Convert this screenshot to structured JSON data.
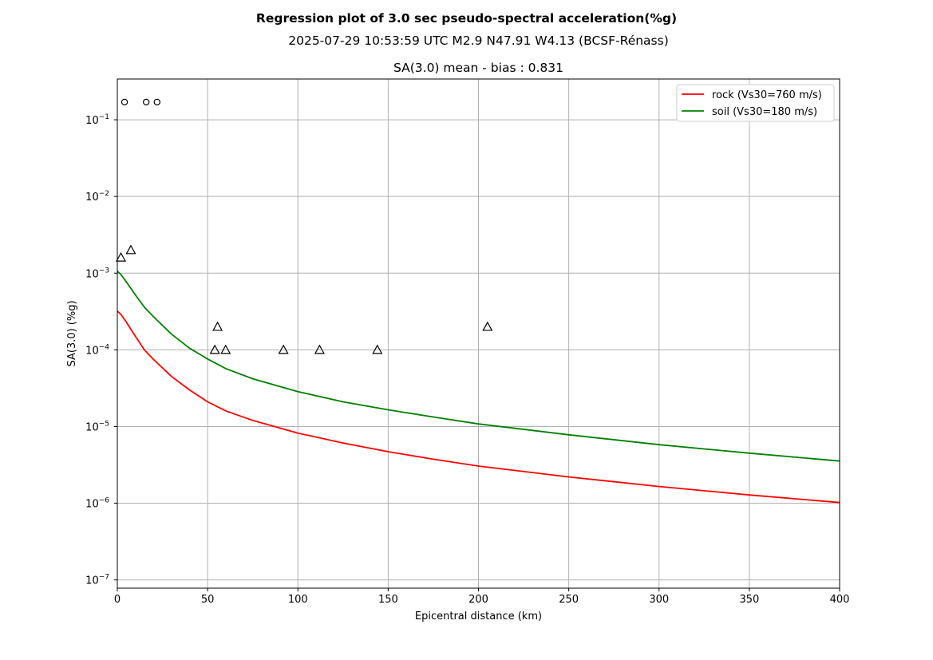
{
  "chart_data": {
    "type": "scatter",
    "title": "Regression plot of 3.0 sec pseudo-spectral acceleration(%g)",
    "subtitle": "2025-07-29 10:53:59 UTC M2.9 N47.91 W4.13 (BCSF-Rénass)",
    "panel_title": "SA(3.0) mean - bias : 0.831",
    "xlabel": "Epicentral distance (km)",
    "ylabel": "SA(3.0) (%g)",
    "xlim": [
      0,
      400
    ],
    "ylim": [
      7.8e-08,
      0.34
    ],
    "yscale": "log",
    "grid": true,
    "legend_position": "top-right",
    "x_ticks": [
      0,
      50,
      100,
      150,
      200,
      250,
      300,
      350,
      400
    ],
    "y_ticks": [
      {
        "exp": -7,
        "value": 1e-07
      },
      {
        "exp": -6,
        "value": 1e-06
      },
      {
        "exp": -5,
        "value": 1e-05
      },
      {
        "exp": -4,
        "value": 0.0001
      },
      {
        "exp": -3,
        "value": 0.001
      },
      {
        "exp": -2,
        "value": 0.01
      },
      {
        "exp": -1,
        "value": 0.1
      }
    ],
    "tick_base": "10",
    "series": [
      {
        "name": "rock (Vs30=760 m/s)",
        "color": "#ff0000",
        "kind": "line",
        "x": [
          0,
          2,
          5,
          10,
          15,
          20,
          30,
          40,
          50,
          60,
          75,
          100,
          125,
          150,
          175,
          200,
          250,
          300,
          350,
          400
        ],
        "values": [
          0.00032,
          0.00029,
          0.00023,
          0.00015,
          0.0001,
          7.5e-05,
          4.5e-05,
          3e-05,
          2.1e-05,
          1.6e-05,
          1.2e-05,
          8.2e-06,
          6.1e-06,
          4.7e-06,
          3.75e-06,
          3.05e-06,
          2.2e-06,
          1.65e-06,
          1.28e-06,
          1.02e-06
        ]
      },
      {
        "name": "soil (Vs30=180 m/s)",
        "color": "#008000",
        "kind": "line",
        "x": [
          0,
          2,
          5,
          10,
          15,
          20,
          30,
          40,
          50,
          60,
          75,
          100,
          125,
          150,
          175,
          200,
          250,
          300,
          350,
          400
        ],
        "values": [
          0.00106,
          0.00096,
          0.00077,
          0.00052,
          0.00036,
          0.00027,
          0.00016,
          0.000105,
          7.6e-05,
          5.7e-05,
          4.2e-05,
          2.85e-05,
          2.1e-05,
          1.65e-05,
          1.33e-05,
          1.08e-05,
          7.8e-06,
          5.8e-06,
          4.5e-06,
          3.55e-06
        ]
      },
      {
        "kind": "circle-markers",
        "color": "#000000",
        "x": [
          4,
          16,
          22
        ],
        "values": [
          0.17,
          0.17,
          0.17
        ]
      },
      {
        "kind": "triangle-markers",
        "color": "#000000",
        "x": [
          2,
          7.5,
          54,
          55.5,
          60,
          92,
          112,
          144,
          205
        ],
        "values": [
          0.0016,
          0.002,
          0.0001,
          0.0002,
          0.0001,
          0.0001,
          0.0001,
          0.0001,
          0.0002
        ]
      }
    ]
  }
}
